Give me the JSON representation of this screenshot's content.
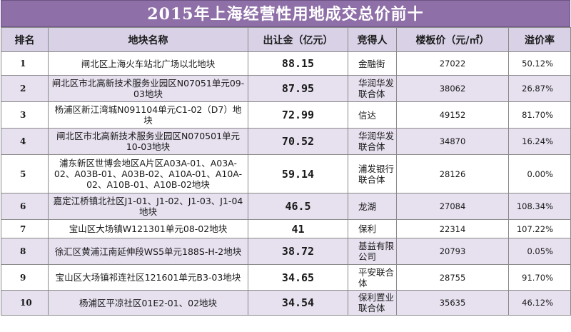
{
  "title": "2015年上海经营性用地成交总价前十",
  "headers": {
    "rank": "排名",
    "name": "地块名称",
    "price": "出让金（亿元）",
    "winner": "竞得人",
    "floor": "楼板价（元/㎡）",
    "premium": "溢价率"
  },
  "rows": [
    {
      "rank": "1",
      "name": "闸北区上海火车站北广场以北地块",
      "price": "88.15",
      "winner": "金融街",
      "floor": "27022",
      "premium": "50.12%"
    },
    {
      "rank": "2",
      "name": "闸北区市北高新技术服务业园区N07051单元09-03地块",
      "price": "87.95",
      "winner": "华润华发联合体",
      "floor": "38062",
      "premium": "26.87%"
    },
    {
      "rank": "3",
      "name": "杨浦区新江湾城N091104单元C1-02（D7）地块",
      "price": "72.99",
      "winner": "信达",
      "floor": "49152",
      "premium": "81.70%"
    },
    {
      "rank": "4",
      "name": "闸北区市北高新技术服务业园区N070501单元10-03地块",
      "price": "70.52",
      "winner": "华润华发联合体",
      "floor": "34870",
      "premium": "16.24%"
    },
    {
      "rank": "5",
      "name": "浦东新区世博会地区A片区A03A-01、A03A-02、A03B-01、A03B-02、A10A-01、A10A-02、A10B-01、A10B-02地块",
      "price": "59.14",
      "winner": "浦发银行联合体",
      "floor": "28126",
      "premium": "0.00%"
    },
    {
      "rank": "6",
      "name": "嘉定江桥镇北社区J1-01、J1-02、J1-03、J1-04地块",
      "price": "46.5",
      "winner": "龙湖",
      "floor": "27084",
      "premium": "108.34%"
    },
    {
      "rank": "7",
      "name": "宝山区大场镇W121301单元08-02地块",
      "price": "41",
      "winner": "保利",
      "floor": "22314",
      "premium": "107.22%"
    },
    {
      "rank": "8",
      "name": "徐汇区黄浦江南延伸段WS5单元188S-H-2地块",
      "price": "38.72",
      "winner": "基益有限公司",
      "floor": "20793",
      "premium": "0.05%"
    },
    {
      "rank": "9",
      "name": "宝山区大场镇祁连社区121601单元B3-03地块",
      "price": "34.65",
      "winner": "平安联合体",
      "floor": "28755",
      "premium": "91.70%"
    },
    {
      "rank": "10",
      "name": "杨浦区平凉社区01E2-01、02地块",
      "price": "34.54",
      "winner": "保利置业联合体",
      "floor": "35635",
      "premium": "46.12%"
    }
  ]
}
